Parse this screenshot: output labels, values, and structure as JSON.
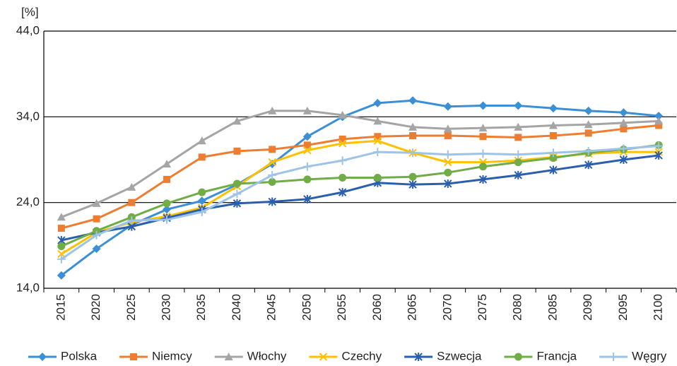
{
  "chart_data": {
    "type": "line",
    "y_label": "[%]",
    "categories": [
      "2015",
      "2020",
      "2025",
      "2030",
      "2035",
      "2040",
      "2045",
      "2050",
      "2055",
      "2060",
      "2065",
      "2070",
      "2075",
      "2080",
      "2085",
      "2090",
      "2095",
      "2100"
    ],
    "ylim": [
      14,
      44
    ],
    "yticks": [
      {
        "value": 14,
        "label": "14,0"
      },
      {
        "value": 24,
        "label": "24,0"
      },
      {
        "value": 34,
        "label": "34,0"
      },
      {
        "value": 44,
        "label": "44,0"
      }
    ],
    "grid": true,
    "legend": "bottom",
    "series": [
      {
        "name": "Polska",
        "color": "#3b8fd6",
        "marker": "diamond",
        "values": [
          15.5,
          18.6,
          21.4,
          23.2,
          24.2,
          26.1,
          28.5,
          31.7,
          34.0,
          35.6,
          35.9,
          35.2,
          35.3,
          35.3,
          35.0,
          34.7,
          34.5,
          34.1
        ]
      },
      {
        "name": "Niemcy",
        "color": "#ed7d31",
        "marker": "square",
        "values": [
          21.0,
          22.1,
          24.0,
          26.7,
          29.3,
          30.0,
          30.2,
          30.7,
          31.4,
          31.7,
          31.8,
          31.8,
          31.7,
          31.6,
          31.8,
          32.1,
          32.6,
          33.0
        ]
      },
      {
        "name": "Włochy",
        "color": "#a5a5a5",
        "marker": "triangle",
        "values": [
          22.3,
          23.9,
          25.8,
          28.5,
          31.2,
          33.5,
          34.7,
          34.7,
          34.2,
          33.5,
          32.8,
          32.6,
          32.7,
          32.8,
          33.0,
          33.1,
          33.3,
          33.5
        ]
      },
      {
        "name": "Czechy",
        "color": "#ffc000",
        "marker": "x",
        "values": [
          18.0,
          20.5,
          21.7,
          22.4,
          23.4,
          25.9,
          28.7,
          30.1,
          30.9,
          31.2,
          29.8,
          28.7,
          28.7,
          28.9,
          29.3,
          29.7,
          29.9,
          29.9
        ]
      },
      {
        "name": "Szwecja",
        "color": "#2a5fae",
        "marker": "star",
        "values": [
          19.6,
          20.5,
          21.2,
          22.2,
          23.2,
          23.9,
          24.1,
          24.4,
          25.2,
          26.3,
          26.1,
          26.2,
          26.7,
          27.2,
          27.8,
          28.4,
          29.0,
          29.5
        ]
      },
      {
        "name": "Francja",
        "color": "#70ad47",
        "marker": "circle",
        "values": [
          18.9,
          20.7,
          22.3,
          23.9,
          25.2,
          26.2,
          26.4,
          26.7,
          26.9,
          26.9,
          27.0,
          27.5,
          28.2,
          28.7,
          29.2,
          29.8,
          30.2,
          30.7
        ]
      },
      {
        "name": "Węgry",
        "color": "#9dc3e6",
        "marker": "plus",
        "values": [
          17.4,
          20.2,
          21.9,
          22.0,
          22.9,
          25.0,
          27.2,
          28.2,
          28.9,
          29.9,
          29.8,
          29.6,
          29.7,
          29.6,
          29.8,
          30.0,
          30.3,
          30.6
        ]
      }
    ]
  }
}
